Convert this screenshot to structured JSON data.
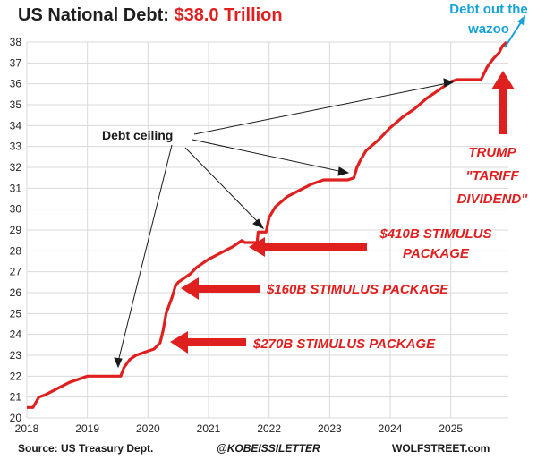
{
  "header": {
    "title_prefix": "US National Debt: ",
    "title_amount": "$38.0 Trillion"
  },
  "annotations": {
    "wazoo": "Debt out the wazoo",
    "debt_ceiling": "Debt ceiling",
    "stim_410": "$410B STIMULUS",
    "stim_410_b": "PACKAGE",
    "stim_160": "$160B STIMULUS PACKAGE",
    "stim_270": "$270B STIMULUS PACKAGE",
    "trump_1": "TRUMP",
    "trump_2": "\"TARIFF",
    "trump_3": "DIVIDEND\""
  },
  "footer": {
    "source": "Source: US Treasury Dept.",
    "handle": "@KOBEISSILETTER",
    "site": "WOLFSTREET.com"
  },
  "colors": {
    "line": "#e01f1f",
    "arrow_blue": "#16a2d8",
    "grid": "#d9d9d9"
  },
  "chart_data": {
    "type": "line",
    "ylim": [
      20,
      38
    ],
    "xlim": [
      2018,
      2025.95
    ],
    "yticks": [
      "20",
      "21",
      "22",
      "23",
      "24",
      "25",
      "26",
      "27",
      "28",
      "29",
      "30",
      "31",
      "32",
      "33",
      "34",
      "35",
      "36",
      "37",
      "38"
    ],
    "xticks": [
      "2018",
      "2019",
      "2020",
      "2021",
      "2022",
      "2023",
      "2024",
      "2025"
    ],
    "grid": true,
    "series": [
      {
        "x": [
          2018.0,
          2018.1,
          2018.2,
          2018.3,
          2018.5,
          2018.7,
          2018.9,
          2019.0,
          2019.1,
          2019.2,
          2019.4,
          2019.55,
          2019.6,
          2019.7,
          2019.8,
          2019.9,
          2020.0,
          2020.1,
          2020.2,
          2020.25,
          2020.3,
          2020.35,
          2020.4,
          2020.45,
          2020.5,
          2020.6,
          2020.7,
          2020.8,
          2020.9,
          2021.0,
          2021.2,
          2021.4,
          2021.5,
          2021.55,
          2021.6,
          2021.7,
          2021.8,
          2021.82,
          2021.85,
          2021.9,
          2021.95,
          2022.0,
          2022.1,
          2022.3,
          2022.5,
          2022.7,
          2022.9,
          2023.0,
          2023.1,
          2023.3,
          2023.4,
          2023.45,
          2023.5,
          2023.6,
          2023.8,
          2024.0,
          2024.2,
          2024.4,
          2024.6,
          2024.8,
          2024.9,
          2025.0,
          2025.1,
          2025.2,
          2025.3,
          2025.4,
          2025.5,
          2025.55,
          2025.6,
          2025.7,
          2025.8,
          2025.85,
          2025.92
        ],
        "y": [
          20.5,
          20.5,
          21.0,
          21.1,
          21.4,
          21.7,
          21.9,
          22.0,
          22.0,
          22.0,
          22.0,
          22.0,
          22.4,
          22.8,
          23.0,
          23.1,
          23.2,
          23.3,
          23.6,
          24.2,
          25.0,
          25.4,
          25.8,
          26.3,
          26.5,
          26.7,
          26.9,
          27.2,
          27.4,
          27.6,
          27.9,
          28.2,
          28.4,
          28.5,
          28.4,
          28.4,
          28.4,
          28.9,
          28.9,
          28.9,
          28.9,
          29.6,
          30.1,
          30.6,
          30.9,
          31.2,
          31.4,
          31.4,
          31.4,
          31.4,
          31.5,
          32.0,
          32.3,
          32.8,
          33.3,
          33.9,
          34.4,
          34.8,
          35.3,
          35.7,
          35.9,
          36.1,
          36.2,
          36.2,
          36.2,
          36.2,
          36.2,
          36.5,
          36.8,
          37.2,
          37.5,
          37.8,
          38.0
        ]
      }
    ]
  }
}
